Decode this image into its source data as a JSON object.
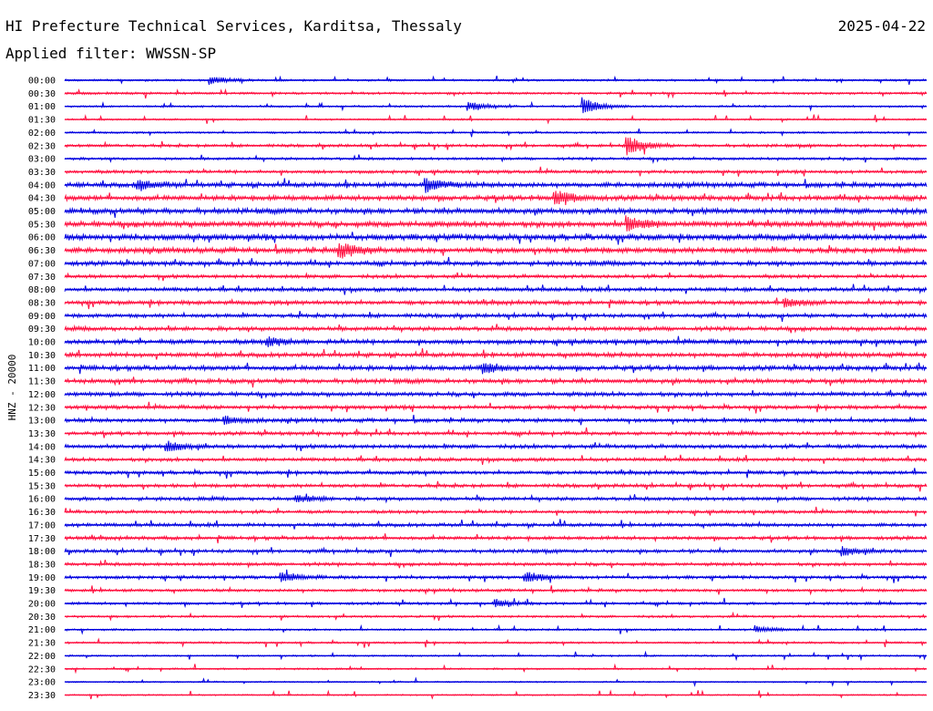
{
  "header": {
    "title": "HI Prefecture Technical Services, Karditsa, Thessaly",
    "date": "2025-04-22",
    "filter": "Applied filter: WWSSN-SP"
  },
  "colors": {
    "trace_even": "#0000e0",
    "trace_odd": "#ff1040",
    "text": "#000000",
    "background": "#ffffff"
  },
  "chart_data": {
    "type": "line",
    "ylabel": "HNZ - 20000",
    "row_labels": [
      "00:00",
      "00:30",
      "01:00",
      "01:30",
      "02:00",
      "02:30",
      "03:00",
      "03:30",
      "04:00",
      "04:30",
      "05:00",
      "05:30",
      "06:00",
      "06:30",
      "07:00",
      "07:30",
      "08:00",
      "08:30",
      "09:00",
      "09:30",
      "10:00",
      "10:30",
      "11:00",
      "11:30",
      "12:00",
      "12:30",
      "13:00",
      "13:30",
      "14:00",
      "14:30",
      "15:00",
      "15:30",
      "16:00",
      "16:30",
      "17:00",
      "17:30",
      "18:00",
      "18:30",
      "19:00",
      "19:30",
      "20:00",
      "20:30",
      "21:00",
      "21:30",
      "22:00",
      "22:30",
      "23:00",
      "23:30"
    ],
    "noise_level": [
      0.6,
      0.7,
      0.6,
      0.5,
      0.6,
      0.9,
      0.8,
      1.0,
      1.5,
      1.6,
      1.7,
      1.8,
      1.9,
      1.7,
      1.4,
      1.1,
      1.2,
      1.3,
      1.2,
      1.3,
      1.4,
      1.4,
      1.5,
      1.4,
      1.3,
      1.2,
      1.2,
      1.1,
      1.2,
      1.1,
      1.1,
      1.1,
      1.1,
      1.0,
      1.1,
      1.1,
      1.1,
      1.0,
      1.0,
      0.9,
      0.8,
      0.7,
      0.6,
      0.6,
      0.5,
      0.5,
      0.4,
      0.4
    ],
    "events": [
      {
        "row": 0,
        "minute": 5.0,
        "amp": 5
      },
      {
        "row": 2,
        "minute": 18.0,
        "amp": 10
      },
      {
        "row": 2,
        "minute": 14.0,
        "amp": 5
      },
      {
        "row": 5,
        "minute": 19.5,
        "amp": 12
      },
      {
        "row": 8,
        "minute": 12.5,
        "amp": 8
      },
      {
        "row": 8,
        "minute": 2.5,
        "amp": 6
      },
      {
        "row": 9,
        "minute": 17.0,
        "amp": 9
      },
      {
        "row": 11,
        "minute": 19.5,
        "amp": 9
      },
      {
        "row": 13,
        "minute": 9.5,
        "amp": 11
      },
      {
        "row": 17,
        "minute": 25.0,
        "amp": 6
      },
      {
        "row": 20,
        "minute": 7.0,
        "amp": 5
      },
      {
        "row": 22,
        "minute": 14.5,
        "amp": 6
      },
      {
        "row": 26,
        "minute": 5.5,
        "amp": 5
      },
      {
        "row": 28,
        "minute": 3.5,
        "amp": 6
      },
      {
        "row": 32,
        "minute": 8.0,
        "amp": 5
      },
      {
        "row": 36,
        "minute": 27.0,
        "amp": 5
      },
      {
        "row": 38,
        "minute": 16.0,
        "amp": 6
      },
      {
        "row": 38,
        "minute": 7.5,
        "amp": 5
      },
      {
        "row": 40,
        "minute": 15.0,
        "amp": 4
      },
      {
        "row": 42,
        "minute": 24.0,
        "amp": 4
      }
    ],
    "minutes_per_row": 30,
    "grid": false
  }
}
